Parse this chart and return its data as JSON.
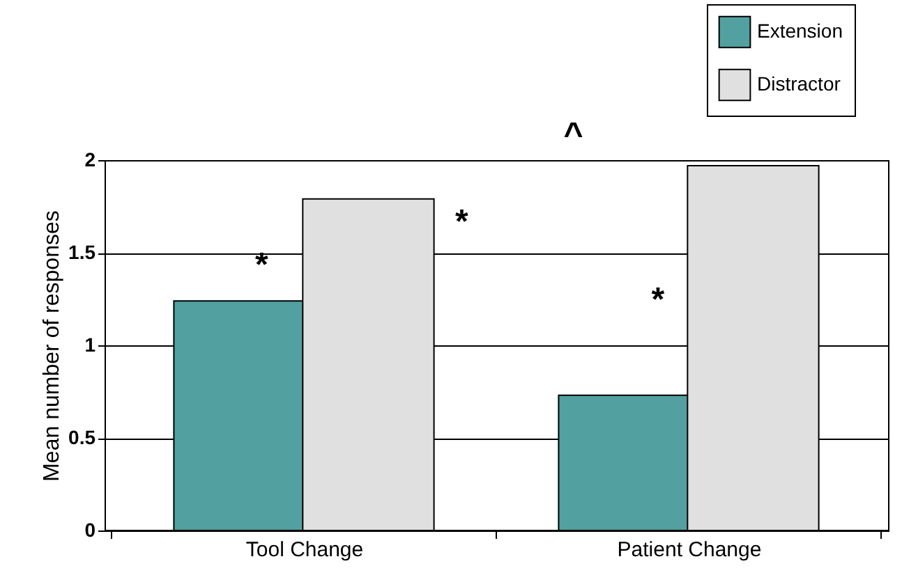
{
  "chart_data": {
    "type": "bar",
    "ylabel": "Mean number of responses",
    "categories": [
      "Tool Change",
      "Patient Change"
    ],
    "series": [
      {
        "name": "Extension",
        "color": "#52a0a0",
        "values": [
          1.24,
          0.73
        ]
      },
      {
        "name": "Distractor",
        "color": "#e0e0e0",
        "values": [
          1.79,
          1.97
        ]
      }
    ],
    "ylim": [
      0,
      2
    ],
    "yticks": [
      0,
      0.5,
      1,
      1.5,
      2
    ],
    "grid": "y",
    "legend": "top right",
    "annotations": [
      "*",
      "*",
      "*",
      "^"
    ]
  }
}
